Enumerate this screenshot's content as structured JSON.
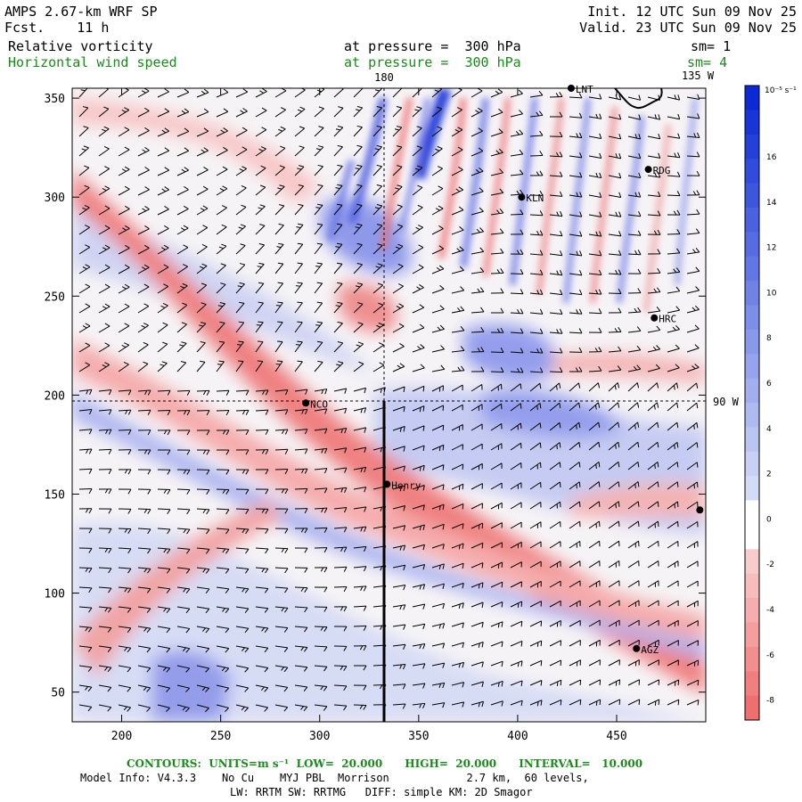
{
  "header": {
    "model": "AMPS 2.67-km WRF SP",
    "fcst": "Fcst.    11 h",
    "init": "Init. 12 UTC Sun 09 Nov 25",
    "valid": "Valid. 23 UTC Sun 09 Nov 25",
    "field1": "Relative vorticity",
    "field1_level": "at pressure =  300 hPa",
    "field1_sm": "sm= 1",
    "field2": "Horizontal wind speed",
    "field2_level": "at pressure =  300 hPa",
    "field2_sm": "sm= 4"
  },
  "map": {
    "x_ticks": [
      "200",
      "250",
      "300",
      "350",
      "400",
      "450"
    ],
    "y_ticks": [
      "50",
      "100",
      "150",
      "200",
      "250",
      "300",
      "350"
    ],
    "x_range": [
      175,
      495
    ],
    "y_range": [
      35,
      355
    ],
    "meridian_label": "180",
    "meridian_label2": "135 W",
    "parallel_label": "90 W",
    "stations": [
      {
        "name": "LNT",
        "x": 427,
        "y": 355
      },
      {
        "name": "RDG",
        "x": 466,
        "y": 314
      },
      {
        "name": "KLN",
        "x": 402,
        "y": 300
      },
      {
        "name": "HRC",
        "x": 469,
        "y": 239
      },
      {
        "name": "NCO",
        "x": 293,
        "y": 196
      },
      {
        "name": "Henry",
        "x": 334,
        "y": 155
      },
      {
        "name": "",
        "x": 492,
        "y": 142
      },
      {
        "name": "AGZ",
        "x": 460,
        "y": 72
      }
    ]
  },
  "colorbar": {
    "unit_label": "10⁻⁵ s⁻¹",
    "ticks": [
      "16",
      "14",
      "12",
      "10",
      "8",
      "6",
      "4",
      "2",
      "0",
      "-2",
      "-4",
      "-6",
      "-8"
    ],
    "colors": {
      "max": "#0b2ad6",
      "positive": "#6b78e6",
      "light_positive": "#c9cdf4",
      "zero": "#ffffff",
      "light_negative": "#f7c6c6",
      "negative": "#ef6f6f"
    }
  },
  "footer": {
    "contours": "CONTOURS:  UNITS=m s⁻¹  LOW=  20.000      HIGH=  20.000      INTERVAL=   10.000",
    "model_info": "Model Info: V4.3.3    No Cu    MYJ PBL  Morrison            2.7 km,  60 levels,",
    "physics": "LW: RRTM SW: RRTMG   DIFF: simple KM: 2D Smagor"
  }
}
